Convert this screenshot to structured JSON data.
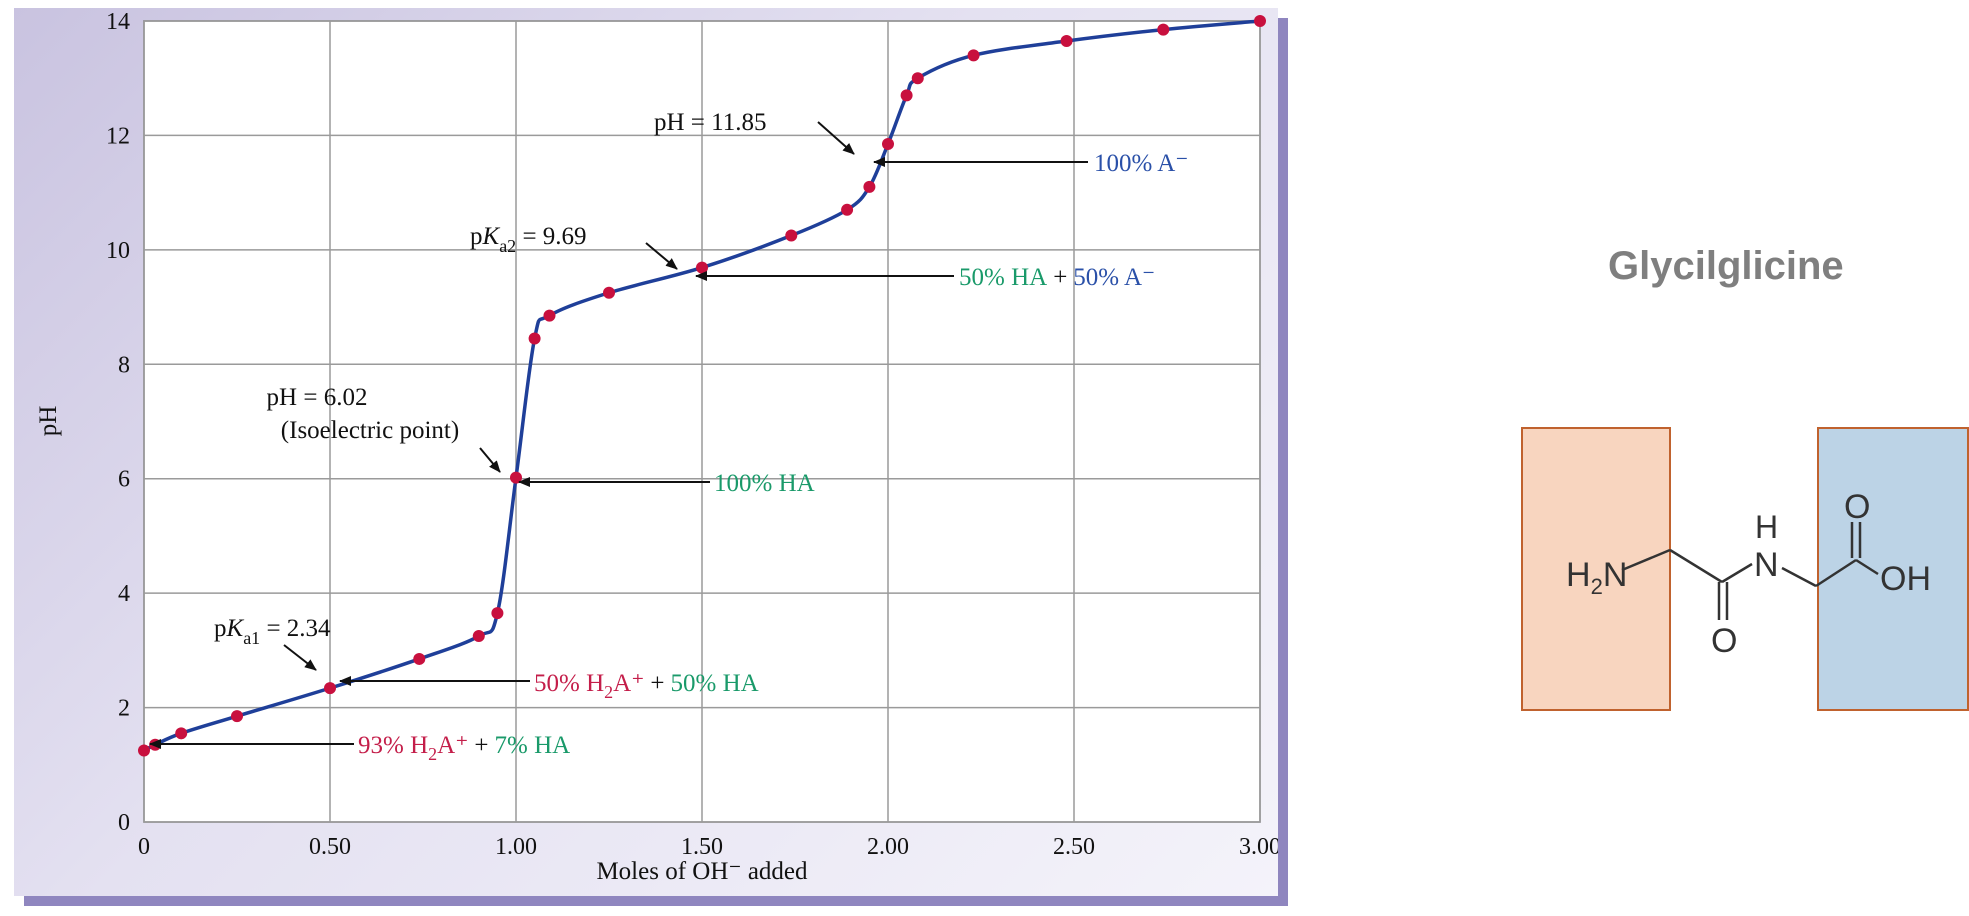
{
  "chart_data": {
    "type": "line",
    "xlabel": "Moles of OH⁻ added",
    "ylabel": "pH",
    "xlim": [
      0,
      3.0
    ],
    "ylim": [
      0,
      14
    ],
    "x_ticks": [
      "0",
      "0.50",
      "1.00",
      "1.50",
      "2.00",
      "2.50",
      "3.00"
    ],
    "y_ticks": [
      "0",
      "2",
      "4",
      "6",
      "8",
      "10",
      "12",
      "14"
    ],
    "grid": true,
    "series": [
      {
        "color": "#1f3f99",
        "x": [
          0,
          0.03,
          0.1,
          0.25,
          0.5,
          0.74,
          0.9,
          0.95,
          1.0,
          1.05,
          1.09,
          1.25,
          1.5,
          1.74,
          1.89,
          1.95,
          2.0,
          2.05,
          2.08,
          2.23,
          2.48,
          2.74,
          3.0
        ],
        "y": [
          1.25,
          1.35,
          1.55,
          1.85,
          2.34,
          2.85,
          3.25,
          3.65,
          6.02,
          8.45,
          8.85,
          9.25,
          9.69,
          10.25,
          10.7,
          11.1,
          11.85,
          12.7,
          13.0,
          13.4,
          13.65,
          13.85,
          14.0
        ]
      }
    ],
    "marker_color": "#c8103e",
    "annotations": {
      "pH_11_85": "pH = 11.85",
      "pka2_prefix": "p",
      "pka2_k": "K",
      "pka2_sub": "a2",
      "pka2_value": " = 9.69",
      "pH_6_02": "pH = 6.02",
      "isoelectric": "(Isoelectric point)",
      "pka1_prefix": "p",
      "pka1_k": "K",
      "pka1_sub": "a1",
      "pka1_value": " = 2.34",
      "pct_100_a_minus": "100% A⁻",
      "pct_50_ha": "50% HA",
      "plus": "+",
      "pct_50_a_minus": "50% A⁻",
      "pct_100_ha": "100% HA",
      "pct_50_h2a": "50% H",
      "sub_2": "2",
      "a_plus": "A⁺",
      "pct_93_h2a": "93% H",
      "pct_7_ha": "7% HA"
    },
    "colors": {
      "green": "#1a9a6a",
      "blue": "#2a50a8",
      "crimson": "#c41e4a"
    }
  },
  "side": {
    "title": "Glycilglicine",
    "molecule": {
      "h2n_h": "H",
      "h2n_sub": "2",
      "h2n_n": "N",
      "nh_h": "H",
      "nh_n": "N",
      "o_top": "O",
      "oh": "OH",
      "o_bottom": "O"
    },
    "box_left_color": "#f8d5bf",
    "box_right_color": "#bcd3e6"
  }
}
